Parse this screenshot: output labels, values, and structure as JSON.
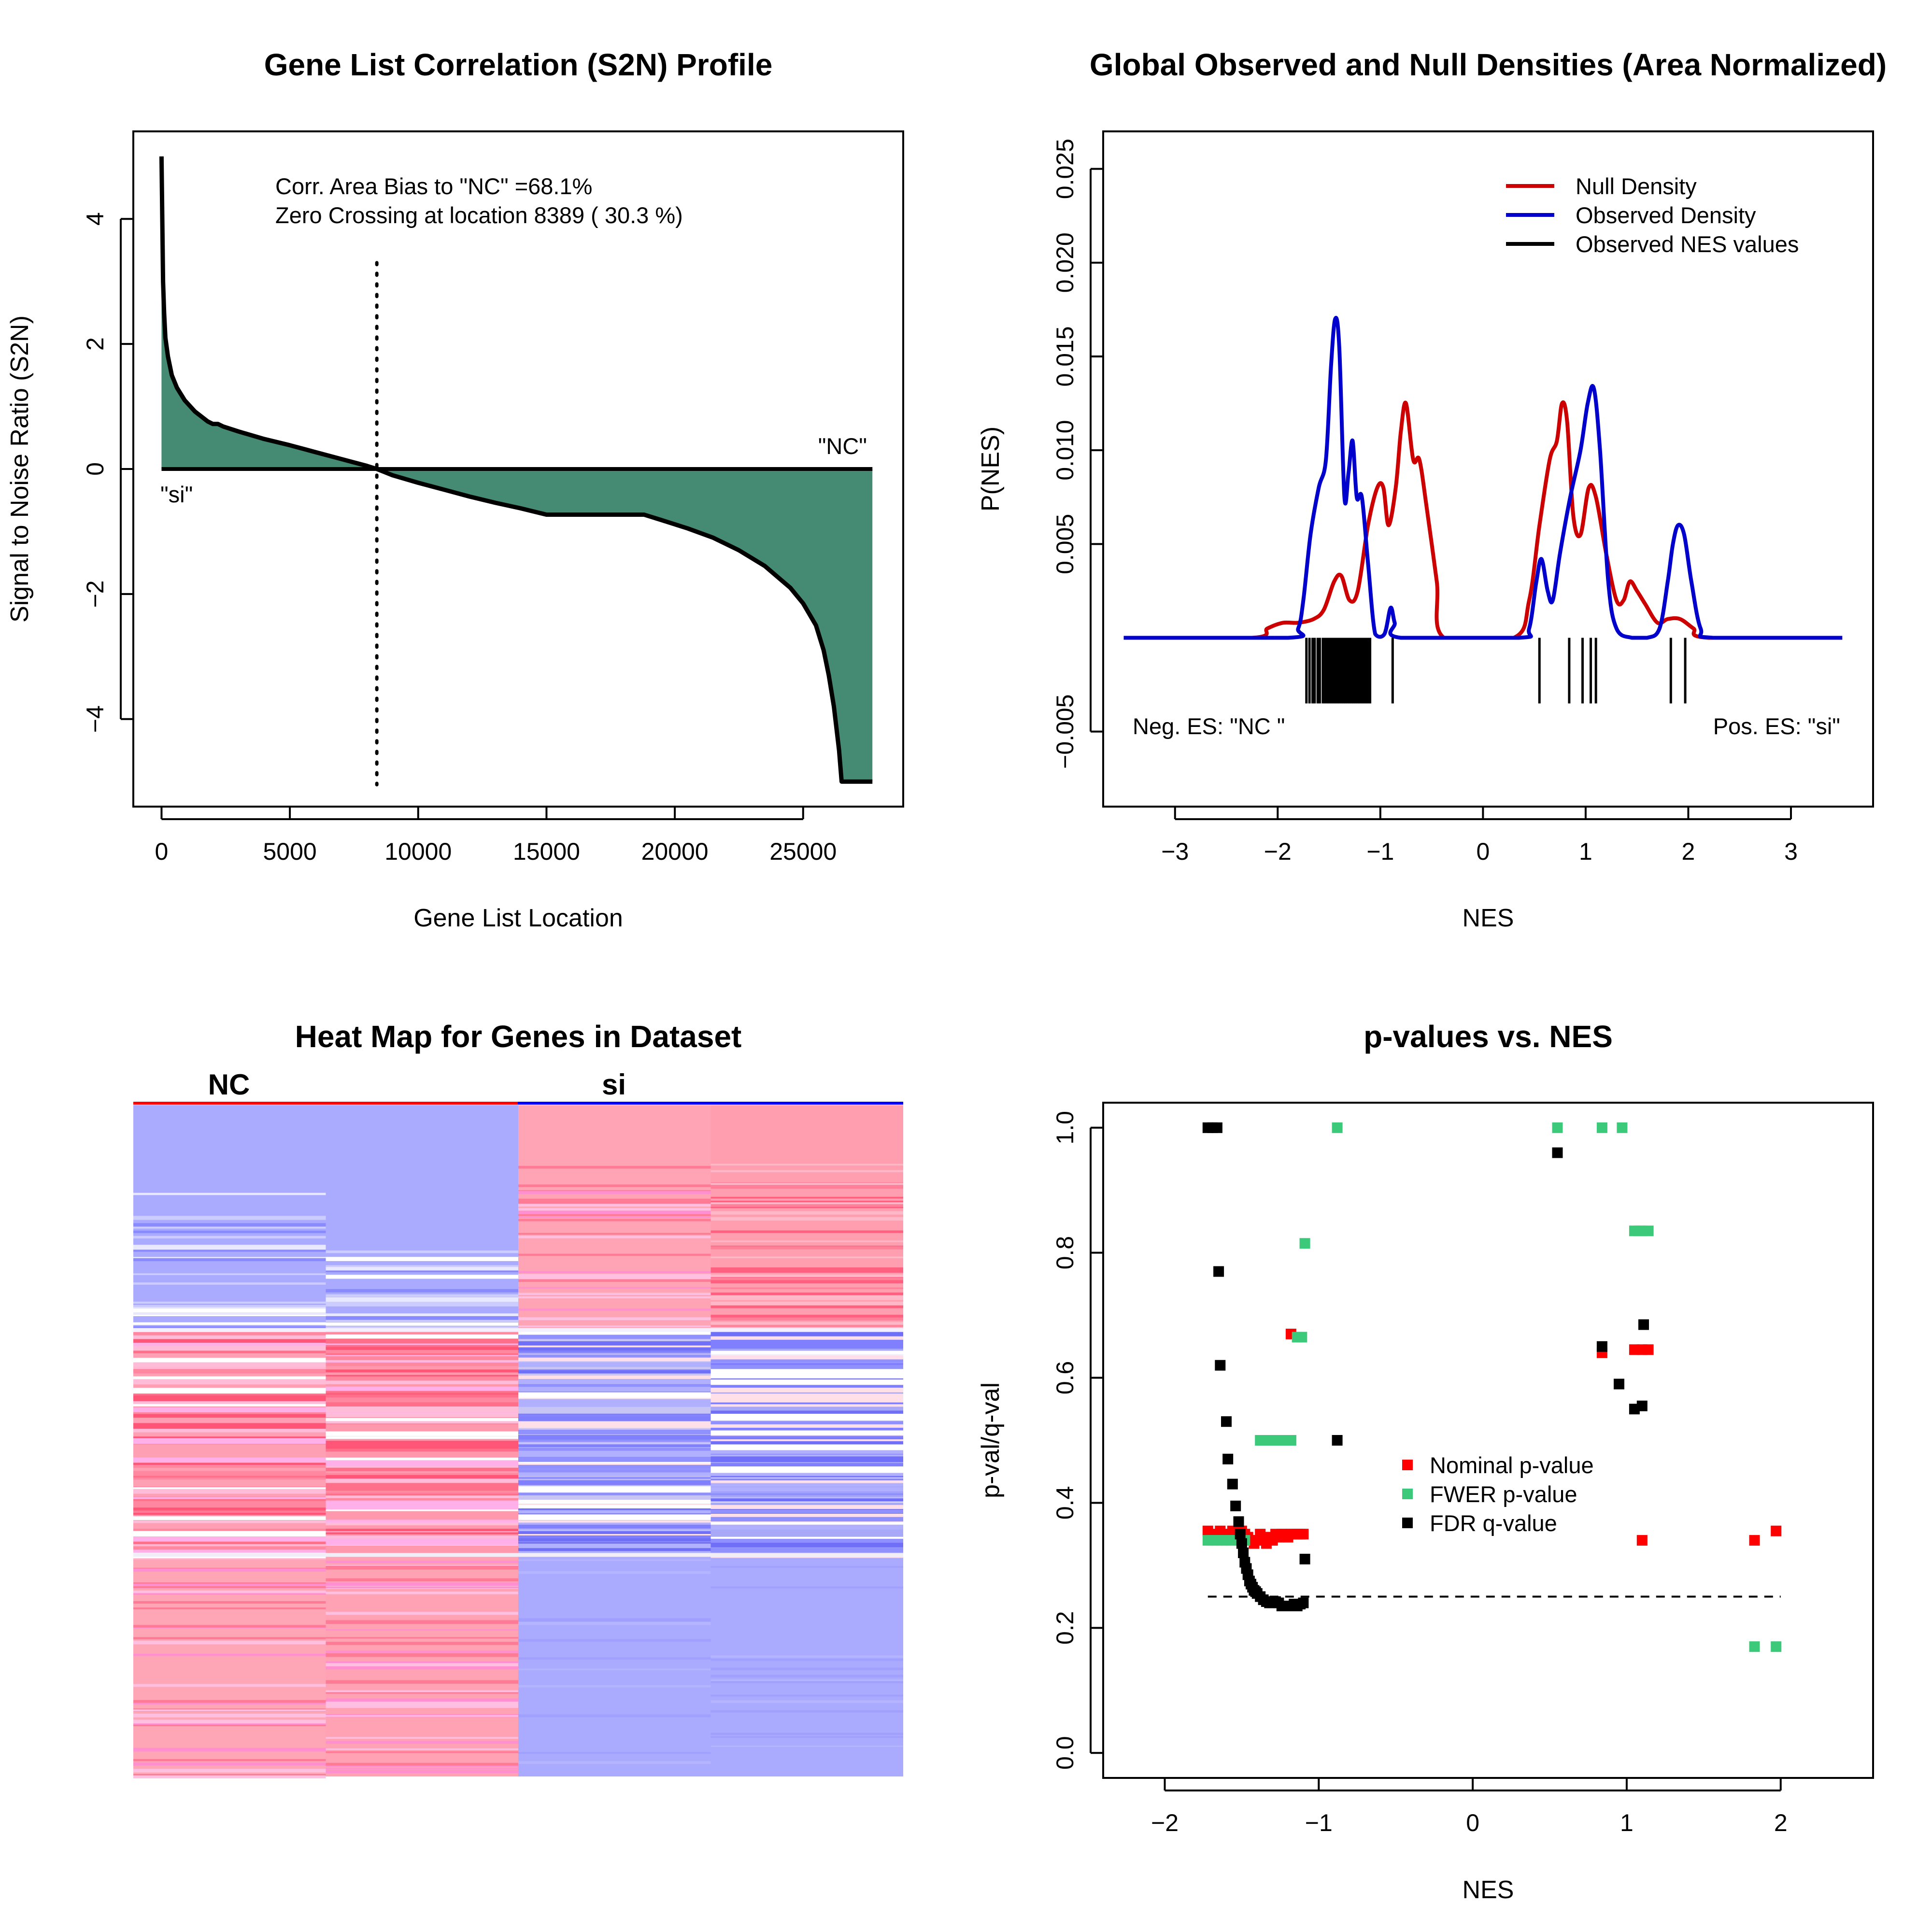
{
  "chart_data": [
    {
      "type": "area",
      "title": "Gene List Correlation (S2N) Profile",
      "xlabel": "Gene List Location",
      "ylabel": "Signal to Noise Ratio (S2N)",
      "xlim": [
        -1100,
        28900
      ],
      "ylim": [
        -5.4,
        5.4
      ],
      "x_ticks": [
        0,
        5000,
        10000,
        15000,
        20000,
        25000
      ],
      "x_tick_labels": [
        "0",
        "5000",
        "10000",
        "15000",
        "20000",
        "25000"
      ],
      "y_ticks": [
        -4,
        -2,
        0,
        2,
        4
      ],
      "y_tick_labels": [
        "−4",
        "−2",
        "0",
        "2",
        "4"
      ],
      "fill_color": "#458b74",
      "line_color": "#000000",
      "x": [
        0,
        30,
        60,
        100,
        150,
        250,
        400,
        600,
        900,
        1300,
        1800,
        2000,
        2200,
        2400,
        3000,
        4000,
        5000,
        6000,
        7000,
        8000,
        8389,
        9000,
        10000,
        11000,
        12000,
        13000,
        14000,
        15000,
        16000,
        17000,
        18000,
        18800,
        19500,
        20500,
        21500,
        22500,
        23500,
        24500,
        25000,
        25500,
        25800,
        26000,
        26200,
        26400,
        26500,
        27700
      ],
      "values": [
        5.0,
        4.0,
        3.0,
        2.5,
        2.1,
        1.8,
        1.5,
        1.3,
        1.1,
        0.92,
        0.76,
        0.72,
        0.72,
        0.68,
        0.6,
        0.48,
        0.38,
        0.27,
        0.16,
        0.05,
        0.0,
        -0.1,
        -0.22,
        -0.33,
        -0.44,
        -0.54,
        -0.63,
        -0.73,
        -0.73,
        -0.73,
        -0.73,
        -0.73,
        -0.82,
        -0.95,
        -1.1,
        -1.3,
        -1.55,
        -1.9,
        -2.15,
        -2.5,
        -2.9,
        -3.3,
        -3.8,
        -4.5,
        -5.0,
        -5.0
      ],
      "zero_crossing_x": 8389,
      "annotations": [
        "Corr. Area Bias to \"NC\" =68.1%",
        "Zero Crossing at location  8389  ( 30.3  %)"
      ],
      "label_right": "\"NC\"",
      "label_left": "\"si\""
    },
    {
      "type": "line",
      "title": "Global Observed and Null Densities (Area Normalized)",
      "xlabel": "NES",
      "ylabel": "P(NES)",
      "xlim": [
        -3.7,
        3.8
      ],
      "ylim": [
        -0.009,
        0.027
      ],
      "x_ticks": [
        -3,
        -2,
        -1,
        0,
        1,
        2,
        3
      ],
      "x_tick_labels": [
        "−3",
        "−2",
        "−1",
        "0",
        "1",
        "2",
        "3"
      ],
      "y_ticks": [
        -0.005,
        0.005,
        0.01,
        0.015,
        0.02,
        0.025
      ],
      "y_tick_labels": [
        "−0.005",
        "0.005",
        "0.010",
        "0.015",
        "0.020",
        "0.025"
      ],
      "legend": {
        "position": "top-right",
        "entries": [
          "Null Density",
          "Observed Density",
          "Observed NES values"
        ]
      },
      "series": [
        {
          "name": "Null Density",
          "color": "#cc0000",
          "x": [
            -3.5,
            -2.25,
            -2.1,
            -1.95,
            -1.8,
            -1.65,
            -1.55,
            -1.45,
            -1.38,
            -1.3,
            -1.22,
            -1.12,
            -1.03,
            -0.97,
            -0.92,
            -0.85,
            -0.8,
            -0.75,
            -0.68,
            -0.62,
            -0.55,
            -0.45,
            -0.38,
            0.3,
            0.45,
            0.55,
            0.65,
            0.72,
            0.77,
            0.82,
            0.88,
            0.95,
            1.03,
            1.1,
            1.2,
            1.3,
            1.37,
            1.43,
            1.5,
            1.58,
            1.7,
            1.8,
            1.92,
            2.05,
            2.2,
            3.5
          ],
          "values": [
            0.0,
            0.0,
            0.0005,
            0.0008,
            0.0008,
            0.001,
            0.0015,
            0.003,
            0.0033,
            0.002,
            0.0025,
            0.006,
            0.008,
            0.008,
            0.006,
            0.008,
            0.011,
            0.0125,
            0.0095,
            0.0095,
            0.007,
            0.003,
            0.0,
            0.0,
            0.002,
            0.006,
            0.0095,
            0.0105,
            0.0125,
            0.0115,
            0.0065,
            0.0055,
            0.008,
            0.0075,
            0.0045,
            0.002,
            0.002,
            0.003,
            0.0025,
            0.0018,
            0.0008,
            0.001,
            0.001,
            0.0005,
            0.0,
            0.0
          ]
        },
        {
          "name": "Observed Density",
          "color": "#0000cc",
          "x": [
            -3.5,
            -1.9,
            -1.8,
            -1.75,
            -1.68,
            -1.6,
            -1.53,
            -1.48,
            -1.44,
            -1.4,
            -1.35,
            -1.31,
            -1.27,
            -1.23,
            -1.18,
            -1.12,
            -1.05,
            -0.96,
            -0.9,
            -0.86,
            -0.8,
            0.35,
            0.45,
            0.52,
            0.57,
            0.63,
            0.68,
            0.75,
            0.85,
            0.95,
            1.02,
            1.08,
            1.14,
            1.22,
            1.3,
            1.45,
            1.6,
            1.72,
            1.8,
            1.85,
            1.9,
            1.96,
            2.03,
            2.12,
            2.25,
            3.5
          ],
          "values": [
            0.0,
            0.0,
            0.0005,
            0.002,
            0.0055,
            0.008,
            0.0095,
            0.0145,
            0.017,
            0.0155,
            0.0075,
            0.0088,
            0.0105,
            0.0075,
            0.0075,
            0.004,
            0.0002,
            0.0002,
            0.0016,
            0.0008,
            0.0,
            0.0,
            0.0005,
            0.003,
            0.0042,
            0.0025,
            0.002,
            0.0045,
            0.0075,
            0.01,
            0.0125,
            0.0133,
            0.01,
            0.003,
            0.0005,
            0.0,
            0.0,
            0.0005,
            0.003,
            0.005,
            0.006,
            0.0055,
            0.003,
            0.0005,
            0.0,
            0.0
          ]
        }
      ],
      "rug_nes": [
        -1.72,
        -1.69,
        -1.66,
        -1.64,
        -1.61,
        -1.59,
        -1.56,
        -1.54,
        -1.52,
        -1.5,
        -1.48,
        -1.46,
        -1.44,
        -1.42,
        -1.4,
        -1.38,
        -1.36,
        -1.34,
        -1.32,
        -1.3,
        -1.28,
        -1.26,
        -1.24,
        -1.22,
        -1.2,
        -1.18,
        -1.16,
        -1.14,
        -1.12,
        -1.1,
        -0.88,
        0.55,
        0.84,
        0.97,
        1.05,
        1.1,
        1.83,
        1.97
      ],
      "text_left": "Neg. ES: \"NC \"",
      "text_right": "Pos. ES: \"si\""
    },
    {
      "type": "heatmap",
      "title": "Heat Map for Genes in Dataset",
      "group_labels": [
        "NC",
        "si"
      ],
      "group_colors": [
        "#ff0000",
        "#0000ff"
      ]
    },
    {
      "type": "scatter",
      "title": "p-values vs. NES",
      "xlabel": "NES",
      "ylabel": "p-val/q-val",
      "xlim": [
        -2.4,
        2.6
      ],
      "ylim": [
        -0.04,
        1.04
      ],
      "x_ticks": [
        -2,
        -1,
        0,
        1,
        2
      ],
      "x_tick_labels": [
        "−2",
        "−1",
        "0",
        "1",
        "2"
      ],
      "y_ticks": [
        0.0,
        0.2,
        0.4,
        0.6,
        0.8,
        1.0
      ],
      "y_tick_labels": [
        "0.0",
        "0.2",
        "0.4",
        "0.6",
        "0.8",
        "1.0"
      ],
      "threshold": 0.25,
      "legend": {
        "position": "center-right",
        "entries": [
          "Nominal p-value",
          "FWER p-value",
          "FDR q-value"
        ]
      },
      "series": [
        {
          "name": "Nominal p-value",
          "color": "#ff0000",
          "x": [
            -1.72,
            -1.69,
            -1.66,
            -1.64,
            -1.61,
            -1.59,
            -1.56,
            -1.54,
            -1.52,
            -1.5,
            -1.48,
            -1.46,
            -1.44,
            -1.42,
            -1.4,
            -1.38,
            -1.36,
            -1.34,
            -1.32,
            -1.3,
            -1.28,
            -1.26,
            -1.24,
            -1.22,
            -1.2,
            -1.18,
            -1.16,
            -1.14,
            -1.12,
            -1.1,
            -1.18,
            0.84,
            1.05,
            1.1,
            1.14,
            1.1,
            1.83,
            1.97
          ],
          "y": [
            0.355,
            0.35,
            0.345,
            0.355,
            0.35,
            0.345,
            0.355,
            0.35,
            0.345,
            0.355,
            0.35,
            0.345,
            0.34,
            0.335,
            0.34,
            0.35,
            0.345,
            0.335,
            0.345,
            0.34,
            0.35,
            0.345,
            0.35,
            0.35,
            0.345,
            0.35,
            0.35,
            0.35,
            0.35,
            0.35,
            0.67,
            0.64,
            0.645,
            0.645,
            0.645,
            0.34,
            0.34,
            0.355
          ]
        },
        {
          "name": "FWER p-value",
          "color": "#3cc97a",
          "x": [
            -1.72,
            -1.69,
            -1.66,
            -1.63,
            -1.6,
            -1.57,
            -1.54,
            -1.51,
            -1.48,
            -1.38,
            -1.34,
            -1.3,
            -1.26,
            -1.22,
            -1.18,
            -1.14,
            -1.11,
            -1.09,
            -0.88,
            0.55,
            0.84,
            0.97,
            1.05,
            1.08,
            1.1,
            1.14,
            1.83,
            1.97
          ],
          "y": [
            0.34,
            0.34,
            0.34,
            0.34,
            0.34,
            0.34,
            0.34,
            0.34,
            0.34,
            0.5,
            0.5,
            0.5,
            0.5,
            0.5,
            0.5,
            0.665,
            0.665,
            0.815,
            1.0,
            1.0,
            1.0,
            1.0,
            0.835,
            0.835,
            0.835,
            0.835,
            0.17,
            0.17
          ]
        },
        {
          "name": "FDR q-value",
          "color": "#000000",
          "x": [
            -1.72,
            -1.69,
            -1.66,
            -1.65,
            -1.64,
            -1.6,
            -1.59,
            -1.56,
            -1.54,
            -1.52,
            -1.51,
            -1.5,
            -1.49,
            -1.48,
            -1.47,
            -1.46,
            -1.45,
            -1.44,
            -1.43,
            -1.42,
            -1.41,
            -1.4,
            -1.38,
            -1.36,
            -1.34,
            -1.32,
            -1.3,
            -1.28,
            -1.26,
            -1.24,
            -1.22,
            -1.2,
            -1.18,
            -1.16,
            -1.14,
            -1.12,
            -1.1,
            -1.09,
            -0.88,
            0.55,
            0.84,
            0.95,
            1.05,
            1.1,
            1.11
          ],
          "y": [
            1.0,
            1.0,
            1.0,
            0.77,
            0.62,
            0.53,
            0.47,
            0.43,
            0.395,
            0.37,
            0.35,
            0.335,
            0.32,
            0.305,
            0.295,
            0.285,
            0.275,
            0.27,
            0.265,
            0.26,
            0.258,
            0.255,
            0.25,
            0.245,
            0.242,
            0.24,
            0.24,
            0.242,
            0.24,
            0.235,
            0.235,
            0.235,
            0.235,
            0.238,
            0.235,
            0.238,
            0.24,
            0.31,
            0.5,
            0.96,
            0.65,
            0.59,
            0.55,
            0.555,
            0.685
          ]
        }
      ]
    }
  ]
}
